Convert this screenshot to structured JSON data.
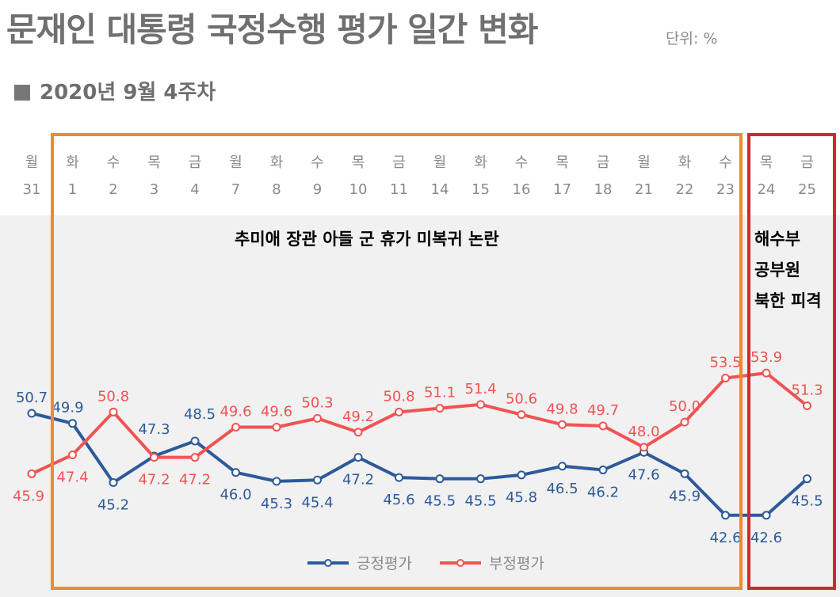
{
  "header": {
    "title": "문재인 대통령 국정수행 평가 일간 변화",
    "unit": "단위: %",
    "subtitle": "2020년 9월 4주차"
  },
  "annotations": {
    "main": "추미애 장관 아들 군 휴가 미복귀 논란",
    "side": [
      "해수부",
      "공부원",
      "북한 피격"
    ]
  },
  "colors": {
    "positive": "#2d5a9a",
    "negative": "#f15353",
    "plot_bg": "#f1f1f1",
    "orange_box": "#ef8a2e",
    "red_box": "#d22630"
  },
  "chart_data": {
    "type": "line",
    "weekdays": [
      "월",
      "화",
      "수",
      "목",
      "금",
      "월",
      "화",
      "수",
      "목",
      "금",
      "월",
      "화",
      "수",
      "목",
      "금",
      "월",
      "화",
      "수",
      "목",
      "금"
    ],
    "categories": [
      "31",
      "1",
      "2",
      "3",
      "4",
      "7",
      "8",
      "9",
      "10",
      "11",
      "14",
      "15",
      "16",
      "17",
      "18",
      "21",
      "22",
      "23",
      "24",
      "25"
    ],
    "series": [
      {
        "name": "긍정평가",
        "color": "#2d5a9a",
        "values": [
          50.7,
          49.9,
          45.2,
          47.3,
          48.5,
          46.0,
          45.3,
          45.4,
          47.2,
          45.6,
          45.5,
          45.5,
          45.8,
          46.5,
          46.2,
          47.6,
          45.9,
          42.6,
          42.6,
          45.5
        ]
      },
      {
        "name": "부정평가",
        "color": "#f15353",
        "values": [
          45.9,
          47.4,
          50.8,
          47.2,
          47.2,
          49.6,
          49.6,
          50.3,
          49.2,
          50.8,
          51.1,
          51.4,
          50.6,
          49.8,
          49.7,
          48.0,
          50.0,
          53.5,
          53.9,
          51.3
        ]
      }
    ],
    "grid": false,
    "legend": "bottom-center"
  }
}
